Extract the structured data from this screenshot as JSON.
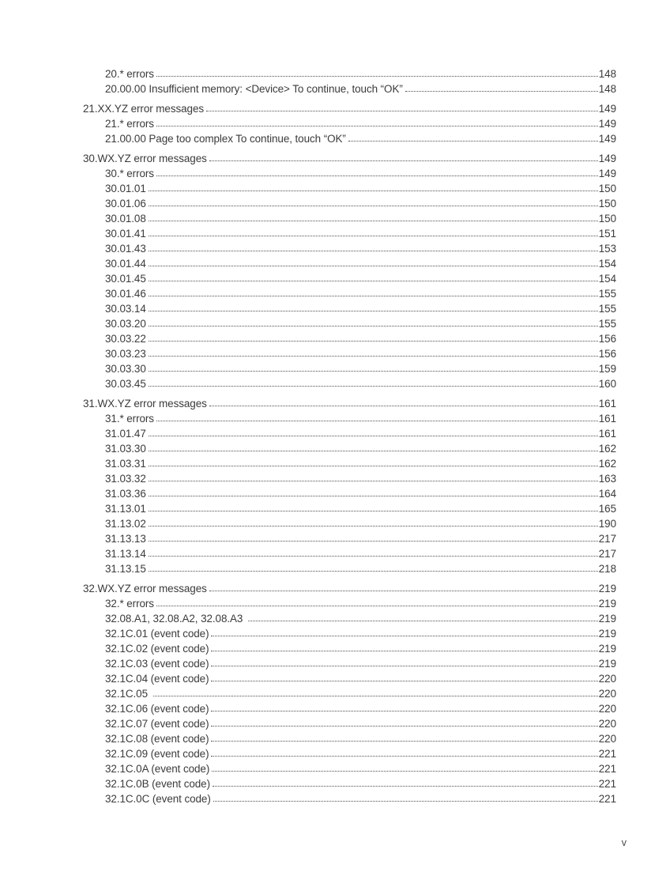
{
  "page": {
    "footer_page_number": "v",
    "text_color": "#3b3b3b",
    "footer_color": "#3e4a56"
  },
  "toc": {
    "sections": [
      {
        "title": null,
        "page": null,
        "children": [
          {
            "label": "20.* errors",
            "page": "148"
          },
          {
            "label": "20.00.00 Insufficient memory: <Device> To continue, touch “OK”",
            "page": "148"
          }
        ]
      },
      {
        "title": "21.XX.YZ error messages",
        "page": "149",
        "children": [
          {
            "label": "21.* errors",
            "page": "149"
          },
          {
            "label": "21.00.00 Page too complex To continue, touch “OK”",
            "page": "149"
          }
        ]
      },
      {
        "title": "30.WX.YZ error messages",
        "page": "149",
        "children": [
          {
            "label": "30.* errors",
            "page": "149"
          },
          {
            "label": "30.01.01",
            "page": "150"
          },
          {
            "label": "30.01.06",
            "page": "150"
          },
          {
            "label": "30.01.08",
            "page": "150"
          },
          {
            "label": "30.01.41",
            "page": "151"
          },
          {
            "label": "30.01.43",
            "page": "153"
          },
          {
            "label": "30.01.44",
            "page": "154"
          },
          {
            "label": "30.01.45",
            "page": "154"
          },
          {
            "label": "30.01.46",
            "page": "155"
          },
          {
            "label": "30.03.14",
            "page": "155"
          },
          {
            "label": "30.03.20",
            "page": "155"
          },
          {
            "label": "30.03.22",
            "page": "156"
          },
          {
            "label": "30.03.23",
            "page": "156"
          },
          {
            "label": "30.03.30",
            "page": "159"
          },
          {
            "label": "30.03.45",
            "page": "160"
          }
        ]
      },
      {
        "title": "31.WX.YZ error messages",
        "page": "161",
        "children": [
          {
            "label": "31.* errors",
            "page": "161"
          },
          {
            "label": "31.01.47",
            "page": "161"
          },
          {
            "label": "31.03.30",
            "page": "162"
          },
          {
            "label": "31.03.31",
            "page": "162"
          },
          {
            "label": "31.03.32",
            "page": "163"
          },
          {
            "label": "31.03.36",
            "page": "164"
          },
          {
            "label": "31.13.01",
            "page": "165"
          },
          {
            "label": "31.13.02",
            "page": "190"
          },
          {
            "label": "31.13.13",
            "page": "217"
          },
          {
            "label": "31.13.14",
            "page": "217"
          },
          {
            "label": "31.13.15",
            "page": "218"
          }
        ]
      },
      {
        "title": "32.WX.YZ error messages",
        "page": "219",
        "children": [
          {
            "label": "32.* errors",
            "page": "219"
          },
          {
            "label": "32.08.A1, 32.08.A2, 32.08.A3 ",
            "page": "219"
          },
          {
            "label": "32.1C.01 (event code)",
            "page": "219"
          },
          {
            "label": "32.1C.02 (event code)",
            "page": "219"
          },
          {
            "label": "32.1C.03 (event code)",
            "page": "219"
          },
          {
            "label": "32.1C.04 (event code)",
            "page": "220"
          },
          {
            "label": "32.1C.05 ",
            "page": "220"
          },
          {
            "label": "32.1C.06 (event code)",
            "page": "220"
          },
          {
            "label": "32.1C.07 (event code)",
            "page": "220"
          },
          {
            "label": "32.1C.08 (event code)",
            "page": "220"
          },
          {
            "label": "32.1C.09 (event code)",
            "page": "221"
          },
          {
            "label": "32.1C.0A (event code)",
            "page": "221"
          },
          {
            "label": "32.1C.0B (event code)",
            "page": "221"
          },
          {
            "label": "32.1C.0C (event code)",
            "page": "221"
          }
        ]
      }
    ]
  }
}
